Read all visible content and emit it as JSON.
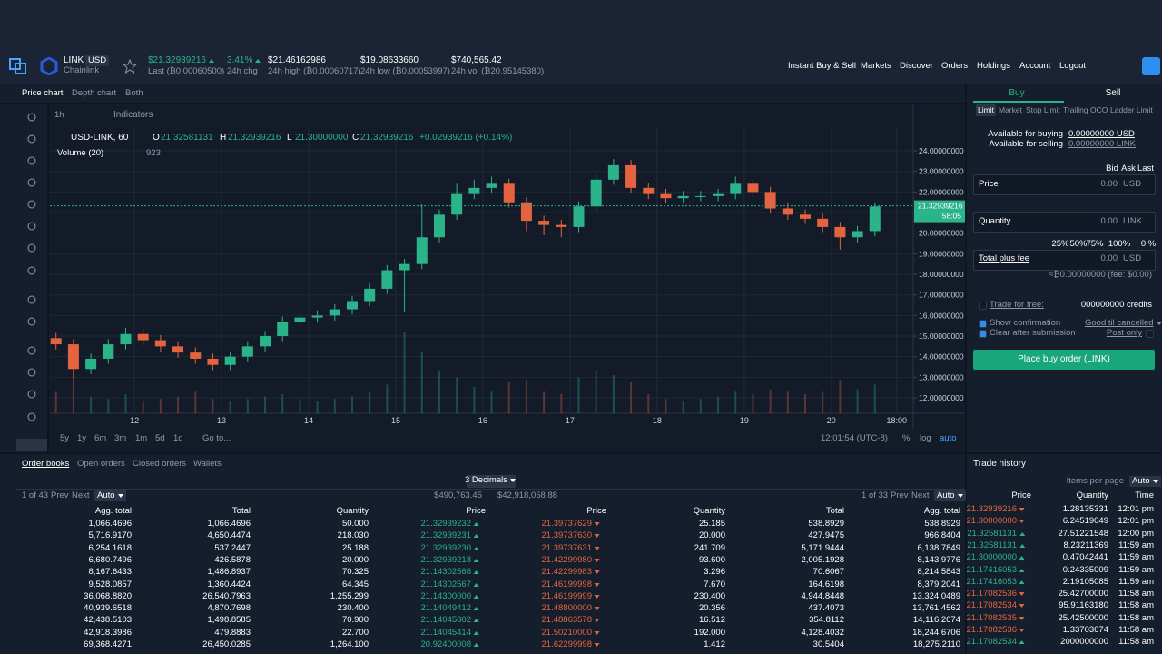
{
  "header": {
    "symbol": "LINK",
    "quote": "USD",
    "name": "Chainlink",
    "stats": [
      {
        "value": "$21.32939216",
        "label": "Last (₿0.00060500)"
      },
      {
        "value": "3.41%",
        "label": "24h chg"
      },
      {
        "value": "$21.46162986",
        "label": "24h high (₿0.00060717)"
      },
      {
        "value": "$19.08633660",
        "label": "24h low (₿0.00053997)"
      },
      {
        "value": "$740,565.42",
        "label": "24h vol (₿20.95145380)"
      }
    ],
    "nav": [
      "Instant Buy & Sell",
      "Markets",
      "Discover",
      "Orders",
      "Holdings",
      "Account",
      "Logout"
    ]
  },
  "chart_tabs": [
    "Price chart",
    "Depth chart",
    "Both"
  ],
  "toolbar": {
    "interval": "1h",
    "indicators": "Indicators"
  },
  "legend": {
    "symbol": "USD-LINK, 60",
    "ohlc": [
      {
        "key": "O",
        "value": "21.32581131"
      },
      {
        "key": "H",
        "value": "21.32939216"
      },
      {
        "key": "L",
        "value": "21.30000000"
      },
      {
        "key": "C",
        "value": "21.32939216"
      }
    ],
    "change": "+0.02939216 (+0.14%)",
    "volume": "Volume (20)",
    "volume_value": "923"
  },
  "chart_data": {
    "type": "candlestick",
    "up_color": "#2bb38a",
    "down_color": "#e5643f",
    "grid": true,
    "x": [
      11.1,
      11.3,
      11.5,
      11.7,
      11.9,
      12.1,
      12.3,
      12.5,
      12.7,
      12.9,
      13.1,
      13.3,
      13.5,
      13.7,
      13.9,
      14.1,
      14.3,
      14.5,
      14.7,
      14.9,
      15.1,
      15.3,
      15.5,
      15.7,
      15.9,
      16.1,
      16.3,
      16.5,
      16.7,
      16.9,
      17.1,
      17.3,
      17.5,
      17.7,
      17.9,
      18.1,
      18.3,
      18.5,
      18.7,
      18.9,
      19.1,
      19.3,
      19.5,
      19.7,
      19.9,
      20.1,
      20.3,
      20.5
    ],
    "candles": [
      [
        14.9,
        15.15,
        14.35,
        14.6
      ],
      [
        14.6,
        14.85,
        12.9,
        13.4
      ],
      [
        13.4,
        14.15,
        13.15,
        13.9
      ],
      [
        13.9,
        14.85,
        13.65,
        14.6
      ],
      [
        14.6,
        15.4,
        14.35,
        15.1
      ],
      [
        15.1,
        15.35,
        14.55,
        14.8
      ],
      [
        14.8,
        15.05,
        14.25,
        14.5
      ],
      [
        14.5,
        14.75,
        13.95,
        14.2
      ],
      [
        14.2,
        14.45,
        13.65,
        13.9
      ],
      [
        13.9,
        14.15,
        13.35,
        13.6
      ],
      [
        13.6,
        14.25,
        13.35,
        14.0
      ],
      [
        14.0,
        14.75,
        13.75,
        14.5
      ],
      [
        14.5,
        15.25,
        14.25,
        15.0
      ],
      [
        15.0,
        15.95,
        14.75,
        15.7
      ],
      [
        15.7,
        16.15,
        15.45,
        15.9
      ],
      [
        15.9,
        16.25,
        15.65,
        16.0
      ],
      [
        16.0,
        16.55,
        15.75,
        16.3
      ],
      [
        16.3,
        16.95,
        16.05,
        16.7
      ],
      [
        16.7,
        17.55,
        16.45,
        17.3
      ],
      [
        17.3,
        18.45,
        17.05,
        18.2
      ],
      [
        18.2,
        18.75,
        16.2,
        18.5
      ],
      [
        18.5,
        21.4,
        18.25,
        19.8
      ],
      [
        19.8,
        21.15,
        19.55,
        20.9
      ],
      [
        20.9,
        22.4,
        20.65,
        21.9
      ],
      [
        21.9,
        22.6,
        21.65,
        22.2
      ],
      [
        22.2,
        22.75,
        21.95,
        22.4
      ],
      [
        22.4,
        22.65,
        21.25,
        21.5
      ],
      [
        21.5,
        21.75,
        20.1,
        20.6
      ],
      [
        20.6,
        20.85,
        19.9,
        20.4
      ],
      [
        20.4,
        20.65,
        19.8,
        20.3
      ],
      [
        20.3,
        21.55,
        20.05,
        21.3
      ],
      [
        21.3,
        22.85,
        21.05,
        22.6
      ],
      [
        22.6,
        23.6,
        22.35,
        23.3
      ],
      [
        23.3,
        23.55,
        21.95,
        22.2
      ],
      [
        22.2,
        22.45,
        21.65,
        21.9
      ],
      [
        21.9,
        22.15,
        21.45,
        21.7
      ],
      [
        21.7,
        22.05,
        21.45,
        21.8
      ],
      [
        21.8,
        22.05,
        21.55,
        21.8
      ],
      [
        21.8,
        22.15,
        21.55,
        21.9
      ],
      [
        21.9,
        22.75,
        21.65,
        22.4
      ],
      [
        22.4,
        22.65,
        21.75,
        22.0
      ],
      [
        22.0,
        22.25,
        20.95,
        21.2
      ],
      [
        21.2,
        21.45,
        20.65,
        20.9
      ],
      [
        20.9,
        21.15,
        20.45,
        20.7
      ],
      [
        20.7,
        20.95,
        20.05,
        20.3
      ],
      [
        20.3,
        20.55,
        19.2,
        19.8
      ],
      [
        19.8,
        20.35,
        19.55,
        20.1
      ],
      [
        20.1,
        21.5,
        19.85,
        21.3
      ]
    ],
    "volumes": [
      900,
      1400,
      700,
      600,
      800,
      500,
      600,
      700,
      900,
      600,
      500,
      600,
      700,
      800,
      600,
      500,
      600,
      700,
      900,
      1200,
      3400,
      2600,
      1800,
      1500,
      1100,
      900,
      1300,
      1400,
      900,
      800,
      1500,
      1800,
      1600,
      1300,
      800,
      600,
      500,
      600,
      700,
      900,
      800,
      1000,
      900,
      800,
      900,
      1400,
      1000,
      1200
    ],
    "volume_ylim": [
      0,
      12000
    ],
    "xlim": [
      11.03,
      20.94
    ],
    "xticks": [
      12,
      13,
      14,
      15,
      16,
      17,
      18,
      19,
      20,
      {
        "value": 20.75,
        "label": "18:00"
      }
    ],
    "ylim": [
      11.25,
      25.15
    ],
    "yticks": [
      {
        "value": 12,
        "label": "12.00000000"
      },
      {
        "value": 13,
        "label": "13.00000000"
      },
      {
        "value": 14,
        "label": "14.00000000"
      },
      {
        "value": 15,
        "label": "15.00000000"
      },
      {
        "value": 16,
        "label": "16.00000000"
      },
      {
        "value": 17,
        "label": "17.00000000"
      },
      {
        "value": 18,
        "label": "18.00000000"
      },
      {
        "value": 19,
        "label": "19.00000000"
      },
      {
        "value": 20,
        "label": "20.00000000"
      },
      {
        "value": 21,
        "label": "21.00000000"
      },
      {
        "value": 22,
        "label": "22.00000000"
      },
      {
        "value": 23,
        "label": "23.00000000"
      },
      {
        "value": 24,
        "label": "24.00000000"
      }
    ],
    "last_price": {
      "value": 21.32939216,
      "label": "21.32939216"
    },
    "countdown": "58:05"
  },
  "range_bar": {
    "ranges": [
      "5y",
      "1y",
      "6m",
      "3m",
      "1m",
      "5d",
      "1d"
    ],
    "goto": "Go to...",
    "time": "12:01:54 (UTC-8)",
    "percent": "%",
    "log": "log",
    "auto": "auto"
  },
  "order_form": {
    "tabs": [
      "Buy",
      "Sell"
    ],
    "types": [
      "Limit",
      "Market",
      "Stop Limit",
      "Trailing",
      "OCO",
      "Ladder Limit"
    ],
    "available_buying_label": "Available for buying",
    "available_buying": "0.00000000 USD",
    "available_selling_label": "Available for selling",
    "available_selling": "0.00000000 LINK",
    "price_refs": [
      "Bid",
      "Ask",
      "Last"
    ],
    "price": {
      "label": "Price",
      "value": "0.00",
      "unit": "USD"
    },
    "quantity": {
      "label": "Quantity",
      "value": "0.00",
      "unit": "LINK"
    },
    "percents": [
      "25%",
      "50%",
      "75%",
      "100%",
      "0 %"
    ],
    "total": {
      "label": "Total plus fee",
      "value": "0.00",
      "unit": "USD"
    },
    "fee_note": "≈₿0.00000000 (fee: $0.00)",
    "trade_free": "Trade for free:",
    "credits": "000000000 credits",
    "show_confirmation": "Show confirmation",
    "time_in_force": "Good til cancelled",
    "clear_after": "Clear after submission",
    "post_only": "Post only",
    "submit": "Place buy order (LINK)"
  },
  "order_book": {
    "tabs": [
      "Order books",
      "Open orders",
      "Closed orders",
      "Wallets"
    ],
    "decimals": "3 Decimals",
    "bids_pager": {
      "page": "1 of 43",
      "prev": "Prev",
      "next": "Next",
      "auto": "Auto"
    },
    "bids_total": "$490,763.45",
    "asks_total": "$42,918,058.88",
    "asks_pager": {
      "page": "1 of 33",
      "prev": "Prev",
      "next": "Next",
      "auto": "Auto"
    },
    "bid_columns": [
      "Agg. total",
      "Total",
      "Quantity",
      "Price"
    ],
    "ask_columns": [
      "Price",
      "Quantity",
      "Total",
      "Agg. total"
    ],
    "bids": [
      [
        "1,066.4696",
        "1,066.4696",
        "50.000",
        "21.32939232"
      ],
      [
        "5,716.9170",
        "4,650.4474",
        "218.030",
        "21.32939231"
      ],
      [
        "6,254.1618",
        "537.2447",
        "25.188",
        "21.32939230"
      ],
      [
        "6,680.7496",
        "426.5878",
        "20.000",
        "21.32939218"
      ],
      [
        "8,167.6433",
        "1,486.8937",
        "70.325",
        "21.14302568"
      ],
      [
        "9,528.0857",
        "1,360.4424",
        "64.345",
        "21.14302567"
      ],
      [
        "36,068.8820",
        "26,540.7963",
        "1,255.299",
        "21.14300000"
      ],
      [
        "40,939.6518",
        "4,870.7698",
        "230.400",
        "21.14049412"
      ],
      [
        "42,438.5103",
        "1,498.8585",
        "70.900",
        "21.14045802"
      ],
      [
        "42,918.3986",
        "479.8883",
        "22.700",
        "21.14045414"
      ],
      [
        "69,368.4271",
        "26,450.0285",
        "1,264.100",
        "20.92400008"
      ]
    ],
    "asks": [
      [
        "21.39737629",
        "25.185",
        "538.8929",
        "538.8929"
      ],
      [
        "21.39737630",
        "20.000",
        "427.9475",
        "966.8404"
      ],
      [
        "21.39737631",
        "241.709",
        "5,171.9444",
        "6,138.7849"
      ],
      [
        "21.42299980",
        "93.600",
        "2,005.1928",
        "8,143.9776"
      ],
      [
        "21.42299983",
        "3.296",
        "70.6067",
        "8,214.5843"
      ],
      [
        "21.46199998",
        "7.670",
        "164.6198",
        "8,379.2041"
      ],
      [
        "21.46199999",
        "230.400",
        "4,944.8448",
        "13,324.0489"
      ],
      [
        "21.48800000",
        "20.356",
        "437.4073",
        "13,761.4562"
      ],
      [
        "21.48863578",
        "16.512",
        "354.8112",
        "14,116.2674"
      ],
      [
        "21.50210000",
        "192.000",
        "4,128.4032",
        "18,244.6706"
      ],
      [
        "21.62299998",
        "1.412",
        "30.5404",
        "18,275.2110"
      ]
    ]
  },
  "trade_history": {
    "title": "Trade history",
    "items_per_page": "Items per page",
    "auto": "Auto",
    "columns": [
      "Price",
      "Quantity",
      "Time"
    ],
    "rows": [
      {
        "price": "21.32939216",
        "quantity": "1.28135331",
        "time": "12:01 pm",
        "color": "#e5643f"
      },
      {
        "price": "21.30000000",
        "quantity": "6.24519049",
        "time": "12:01 pm",
        "color": "#e5643f"
      },
      {
        "price": "21.32581131",
        "quantity": "27.51221548",
        "time": "12:00 pm",
        "color": "#2bb38a"
      },
      {
        "price": "21.32581131",
        "quantity": "8.23211369",
        "time": "11:59 am",
        "color": "#2bb38a"
      },
      {
        "price": "21.30000000",
        "quantity": "0.47042441",
        "time": "11:59 am",
        "color": "#2bb38a"
      },
      {
        "price": "21.17416053",
        "quantity": "0.24335009",
        "time": "11:59 am",
        "color": "#2bb38a"
      },
      {
        "price": "21.17416053",
        "quantity": "2.19105085",
        "time": "11:59 am",
        "color": "#2bb38a"
      },
      {
        "price": "21.17082536",
        "quantity": "25.42700000",
        "time": "11:58 am",
        "color": "#e5643f"
      },
      {
        "price": "21.17082534",
        "quantity": "95.91163180",
        "time": "11:58 am",
        "color": "#e5643f"
      },
      {
        "price": "21.17082535",
        "quantity": "25.42500000",
        "time": "11:58 am",
        "color": "#e5643f"
      },
      {
        "price": "21.17082536",
        "quantity": "1.33703674",
        "time": "11:58 am",
        "color": "#e5643f"
      },
      {
        "price": "21.17082534",
        "quantity": "2000000000",
        "time": "11:58 am",
        "color": "#2bb38a"
      }
    ]
  }
}
